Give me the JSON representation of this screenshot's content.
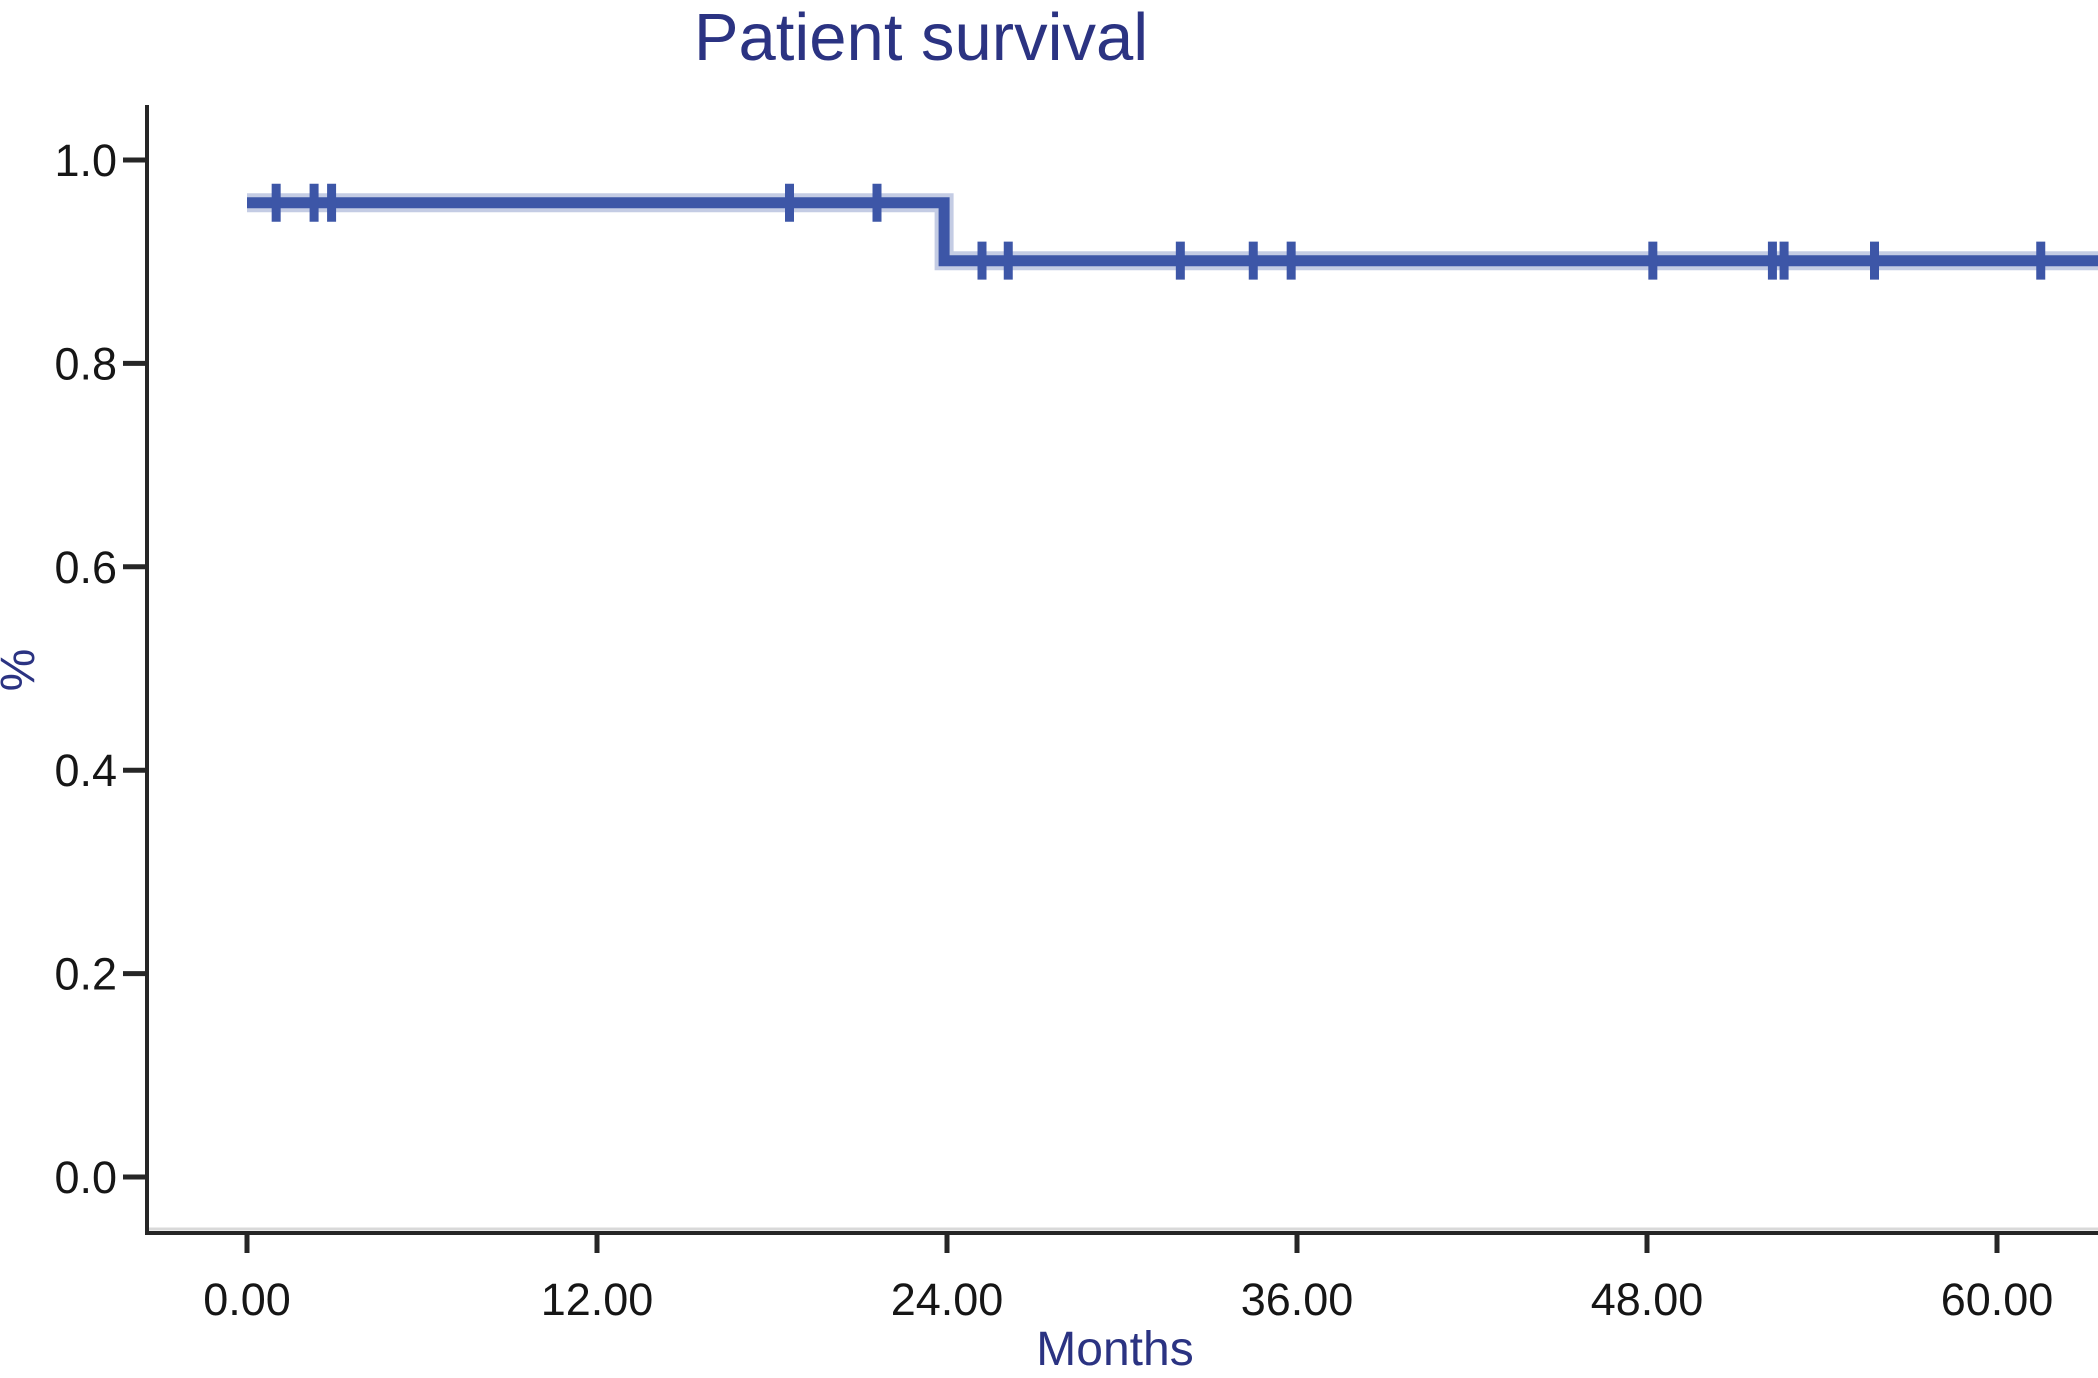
{
  "figure": {
    "background": "#ffffff"
  },
  "colors": {
    "title": "#2b3382",
    "axis_label": "#2b3382",
    "curve": "#3d56a7",
    "curve_halo": "#8fa2d4",
    "axis_line": "#262626",
    "axis_shadow": "#d9d9d9",
    "tick_label": "#161616"
  },
  "chart_data": {
    "type": "line",
    "variant": "kaplan_meier_step_curve",
    "title": "Patient survival",
    "xlabel": "Months",
    "ylabel": "%",
    "grid": false,
    "legend": "none",
    "xlim": [
      -3.4,
      63.5
    ],
    "ylim": [
      -0.06,
      1.05
    ],
    "x_tick_labels": [
      "0.00",
      "12.00",
      "24.00",
      "36.00",
      "48.00",
      "60.00"
    ],
    "x_tick_values": [
      0,
      12,
      24,
      36,
      48,
      60
    ],
    "y_tick_labels": [
      "1.0",
      "0.8",
      "0.6",
      "0.4",
      "0.2",
      "0.0"
    ],
    "y_tick_values": [
      1.0,
      0.8,
      0.6,
      0.4,
      0.2,
      0.0
    ],
    "series": [
      {
        "name": "Patient survival",
        "color": "#3d56a7",
        "step_points": [
          [
            0,
            0.958
          ],
          [
            23.9,
            0.958
          ],
          [
            23.9,
            0.901
          ],
          [
            63.5,
            0.901
          ]
        ],
        "censor_marks": [
          [
            1.0,
            0.958
          ],
          [
            2.3,
            0.958
          ],
          [
            2.9,
            0.958
          ],
          [
            18.6,
            0.958
          ],
          [
            21.6,
            0.958
          ],
          [
            25.2,
            0.901
          ],
          [
            26.1,
            0.901
          ],
          [
            32.0,
            0.901
          ],
          [
            34.5,
            0.901
          ],
          [
            35.8,
            0.901
          ],
          [
            48.2,
            0.901
          ],
          [
            52.3,
            0.901
          ],
          [
            52.7,
            0.901
          ],
          [
            55.8,
            0.901
          ],
          [
            61.5,
            0.901
          ]
        ]
      }
    ]
  }
}
